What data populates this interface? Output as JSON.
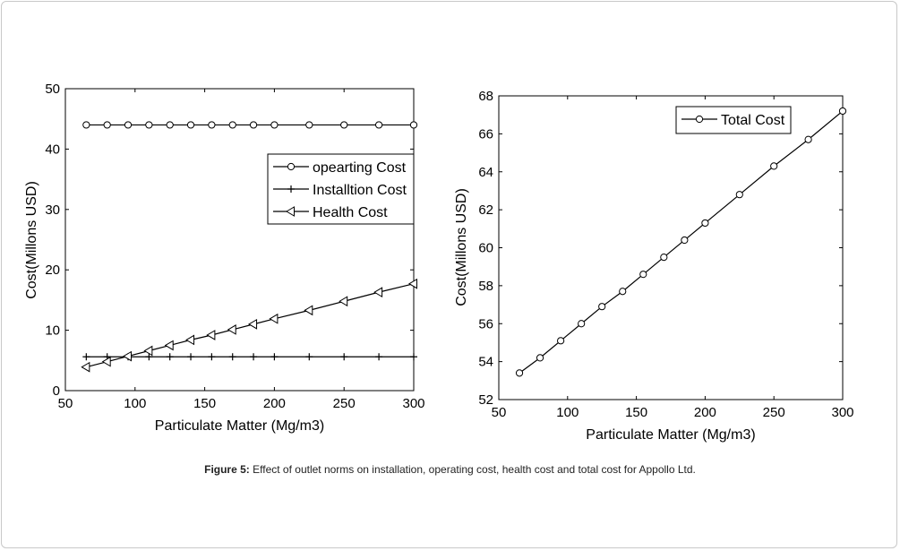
{
  "caption": {
    "label": "Figure 5:",
    "text": "Effect of outlet norms on installation, operating cost, health cost and total cost for Appollo Ltd."
  },
  "chart_data": [
    {
      "type": "line",
      "xlabel": "Particulate Matter (Mg/m3)",
      "ylabel": "Cost(Millons USD)",
      "xlim": [
        50,
        300
      ],
      "ylim": [
        0,
        50
      ],
      "xticks": [
        50,
        100,
        150,
        200,
        250,
        300
      ],
      "yticks": [
        0,
        10,
        20,
        30,
        40,
        50
      ],
      "grid": false,
      "legend_position": "upper-right",
      "x": [
        65,
        80,
        95,
        110,
        125,
        140,
        155,
        170,
        185,
        200,
        225,
        250,
        275,
        300
      ],
      "series": [
        {
          "name": "opearting Cost",
          "marker": "circle",
          "values": [
            44,
            44,
            44,
            44,
            44,
            44,
            44,
            44,
            44,
            44,
            44,
            44,
            44,
            44
          ]
        },
        {
          "name": "Installtion Cost",
          "marker": "plus",
          "values": [
            5.6,
            5.6,
            5.6,
            5.6,
            5.6,
            5.6,
            5.6,
            5.6,
            5.6,
            5.6,
            5.6,
            5.6,
            5.6,
            5.6
          ]
        },
        {
          "name": "Health Cost",
          "marker": "triangle-left",
          "values": [
            3.9,
            4.8,
            5.7,
            6.6,
            7.5,
            8.4,
            9.2,
            10.1,
            11.0,
            11.9,
            13.3,
            14.8,
            16.3,
            17.7
          ]
        }
      ]
    },
    {
      "type": "line",
      "xlabel": "Particulate Matter (Mg/m3)",
      "ylabel": "Cost(Millons USD)",
      "xlim": [
        50,
        300
      ],
      "ylim": [
        52,
        68
      ],
      "xticks": [
        50,
        100,
        150,
        200,
        250,
        300
      ],
      "yticks": [
        52,
        54,
        56,
        58,
        60,
        62,
        64,
        66,
        68
      ],
      "grid": false,
      "legend_position": "upper-left",
      "x": [
        65,
        80,
        95,
        110,
        125,
        140,
        155,
        170,
        185,
        200,
        225,
        250,
        275,
        300
      ],
      "series": [
        {
          "name": "Total Cost",
          "marker": "circle",
          "values": [
            53.4,
            54.2,
            55.1,
            56.0,
            56.9,
            57.7,
            58.6,
            59.5,
            60.4,
            61.3,
            62.8,
            64.3,
            65.7,
            67.2
          ]
        }
      ]
    }
  ]
}
